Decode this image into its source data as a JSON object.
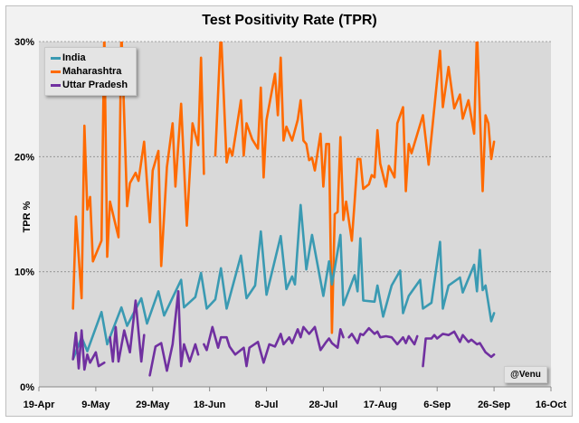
{
  "chart_data": {
    "type": "line",
    "title": "Test Positivity Rate (TPR)",
    "xlabel": "",
    "ylabel": "TPR %",
    "xlim": [
      "19-Apr",
      "16-Oct"
    ],
    "ylim": [
      0,
      30
    ],
    "x_ticks": [
      "19-Apr",
      "9-May",
      "29-May",
      "18-Jun",
      "8-Jul",
      "28-Jul",
      "17-Aug",
      "6-Sep",
      "26-Sep",
      "16-Oct"
    ],
    "y_ticks": [
      "0%",
      "10%",
      "20%",
      "30%"
    ],
    "y_tick_values": [
      0,
      10,
      20,
      30
    ],
    "grid": "horizontal dotted",
    "legend_position": "top-left",
    "annotation": "@Venu",
    "series": [
      {
        "name": "India",
        "color": "#3a9ab2",
        "points": [
          [
            "1-May",
            2.4
          ],
          [
            "4-May",
            4.3
          ],
          [
            "6-May",
            3.1
          ],
          [
            "11-May",
            6.5
          ],
          [
            "13-May",
            3.7
          ],
          [
            "18-May",
            6.9
          ],
          [
            "20-May",
            5.3
          ],
          [
            "25-May",
            7.7
          ],
          [
            "27-May",
            5.5
          ],
          [
            "31-May",
            8.3
          ],
          [
            "2-Jun",
            6.2
          ],
          [
            "8-Jun",
            9.3
          ],
          [
            "9-Jun",
            6.9
          ],
          [
            "13-Jun",
            7.8
          ],
          [
            "15-Jun",
            9.9
          ],
          [
            "17-Jun",
            6.8
          ],
          [
            "20-Jun",
            7.6
          ],
          [
            "22-Jun",
            10.3
          ],
          [
            "24-Jun",
            6.8
          ],
          [
            "29-Jun",
            11.4
          ],
          [
            "1-Jul",
            7.7
          ],
          [
            "4-Jul",
            8.8
          ],
          [
            "6-Jul",
            13.5
          ],
          [
            "8-Jul",
            8.0
          ],
          [
            "13-Jul",
            13.1
          ],
          [
            "15-Jul",
            8.5
          ],
          [
            "17-Jul",
            9.6
          ],
          [
            "18-Jul",
            8.9
          ],
          [
            "20-Jul",
            15.8
          ],
          [
            "22-Jul",
            10.2
          ],
          [
            "24-Jul",
            13.2
          ],
          [
            "28-Jul",
            7.9
          ],
          [
            "30-Jul",
            10.9
          ],
          [
            "31-Jul",
            8.9
          ],
          [
            "3-Aug",
            13.2
          ],
          [
            "4-Aug",
            7.1
          ],
          [
            "8-Aug",
            9.7
          ],
          [
            "9-Aug",
            8.3
          ],
          [
            "10-Aug",
            12.9
          ],
          [
            "11-Aug",
            7.5
          ],
          [
            "15-Aug",
            7.4
          ],
          [
            "16-Aug",
            8.8
          ],
          [
            "18-Aug",
            6.1
          ],
          [
            "21-Aug",
            8.8
          ],
          [
            "24-Aug",
            10.1
          ],
          [
            "25-Aug",
            6.4
          ],
          [
            "27-Aug",
            7.9
          ],
          [
            "31-Aug",
            9.3
          ],
          [
            "1-Sep",
            6.8
          ],
          [
            "4-Sep",
            7.3
          ],
          [
            "7-Sep",
            12.6
          ],
          [
            "8-Sep",
            6.8
          ],
          [
            "10-Sep",
            8.8
          ],
          [
            "14-Sep",
            9.5
          ],
          [
            "15-Sep",
            8.2
          ],
          [
            "19-Sep",
            10.6
          ],
          [
            "20-Sep",
            8.3
          ],
          [
            "21-Sep",
            11.9
          ],
          [
            "22-Sep",
            8.4
          ],
          [
            "23-Sep",
            8.8
          ],
          [
            "25-Sep",
            5.7
          ],
          [
            "26-Sep",
            6.4
          ]
        ]
      },
      {
        "name": "Maharashtra",
        "color": "#ff6a00",
        "points": [
          [
            "1-May",
            6.8
          ],
          [
            "2-May",
            14.8
          ],
          [
            "4-May",
            7.7
          ],
          [
            "5-May",
            22.7
          ],
          [
            "6-May",
            15.4
          ],
          [
            "7-May",
            16.5
          ],
          [
            "8-May",
            10.9
          ],
          [
            "11-May",
            12.7
          ],
          [
            "12-May",
            31
          ],
          [
            "13-May",
            11.3
          ],
          [
            "14-May",
            16.1
          ],
          [
            "17-May",
            13.0
          ],
          [
            "18-May",
            31
          ],
          [
            "20-May",
            15.7
          ],
          [
            "21-May",
            17.7
          ],
          [
            "23-May",
            18.6
          ],
          [
            "24-May",
            17.9
          ],
          [
            "26-May",
            21.3
          ],
          [
            "28-May",
            14.3
          ],
          [
            "29-May",
            18.8
          ],
          [
            "31-May",
            20.5
          ],
          [
            "1-Jun",
            10.5
          ],
          [
            "3-Jun",
            19.1
          ],
          [
            "5-Jun",
            22.9
          ],
          [
            "6-Jun",
            17.4
          ],
          [
            "8-Jun",
            24.6
          ],
          [
            "10-Jun",
            14.0
          ],
          [
            "12-Jun",
            22.9
          ],
          [
            "14-Jun",
            21.0
          ],
          [
            "15-Jun",
            28.6
          ],
          [
            "16-Jun",
            18.5
          ],
          null,
          [
            "20-Jun",
            20.1
          ],
          [
            "22-Jun",
            31
          ],
          [
            "24-Jun",
            19.5
          ],
          [
            "25-Jun",
            20.7
          ],
          [
            "26-Jun",
            20.1
          ],
          [
            "29-Jun",
            24.9
          ],
          [
            "30-Jun",
            20.1
          ],
          [
            "1-Jul",
            22.9
          ],
          [
            "3-Jul",
            21.5
          ],
          [
            "5-Jul",
            20.7
          ],
          [
            "6-Jul",
            26.0
          ],
          [
            "7-Jul",
            18.2
          ],
          [
            "8-Jul",
            23.2
          ],
          [
            "11-Jul",
            27.2
          ],
          [
            "12-Jul",
            23.6
          ],
          [
            "13-Jul",
            28.6
          ],
          [
            "14-Jul",
            21.4
          ],
          [
            "15-Jul",
            22.6
          ],
          [
            "17-Jul",
            21.4
          ],
          [
            "19-Jul",
            23.2
          ],
          [
            "20-Jul",
            24.9
          ],
          [
            "21-Jul",
            21.4
          ],
          [
            "22-Jul",
            21.1
          ],
          [
            "23-Jul",
            19.7
          ],
          [
            "24-Jul",
            19.9
          ],
          [
            "25-Jul",
            18.8
          ],
          [
            "27-Jul",
            22.0
          ],
          [
            "28-Jul",
            17.4
          ],
          [
            "29-Jul",
            21.1
          ],
          [
            "30-Jul",
            21.1
          ],
          [
            "31-Jul",
            4.7
          ],
          [
            "1-Aug",
            15.0
          ],
          [
            "2-Aug",
            15.2
          ],
          [
            "3-Aug",
            21.7
          ],
          [
            "4-Aug",
            14.5
          ],
          [
            "5-Aug",
            16.1
          ],
          [
            "7-Aug",
            12.7
          ],
          [
            "8-Aug",
            16.1
          ],
          [
            "9-Aug",
            19.8
          ],
          [
            "10-Aug",
            19.8
          ],
          [
            "11-Aug",
            17.2
          ],
          [
            "13-Aug",
            17.6
          ],
          [
            "14-Aug",
            18.4
          ],
          [
            "15-Aug",
            18.2
          ],
          [
            "16-Aug",
            22.3
          ],
          [
            "17-Aug",
            19.4
          ],
          [
            "19-Aug",
            17.4
          ],
          [
            "20-Aug",
            19.2
          ],
          [
            "22-Aug",
            18.2
          ],
          [
            "23-Aug",
            22.9
          ],
          [
            "25-Aug",
            24.3
          ],
          [
            "26-Aug",
            17.0
          ],
          [
            "27-Aug",
            21.1
          ],
          [
            "28-Aug",
            20.3
          ],
          [
            "1-Sep",
            23.6
          ],
          [
            "3-Sep",
            19.3
          ],
          [
            "7-Sep",
            29.2
          ],
          [
            "8-Sep",
            24.3
          ],
          [
            "10-Sep",
            27.8
          ],
          [
            "12-Sep",
            24.2
          ],
          [
            "14-Sep",
            25.4
          ],
          [
            "15-Sep",
            23.3
          ],
          [
            "17-Sep",
            24.9
          ],
          [
            "19-Sep",
            22.0
          ],
          [
            "20-Sep",
            31
          ],
          [
            "22-Sep",
            17.0
          ],
          [
            "23-Sep",
            23.6
          ],
          [
            "24-Sep",
            22.9
          ],
          [
            "25-Sep",
            19.8
          ],
          [
            "26-Sep",
            21.3
          ]
        ]
      },
      {
        "name": "Uttar Pradesh",
        "color": "#7030a0",
        "points": [
          [
            "1-May",
            2.4
          ],
          [
            "2-May",
            4.7
          ],
          [
            "3-May",
            1.6
          ],
          [
            "4-May",
            4.9
          ],
          [
            "5-May",
            1.5
          ],
          [
            "6-May",
            2.8
          ],
          [
            "7-May",
            2.1
          ],
          [
            "9-May",
            3.0
          ],
          [
            "10-May",
            1.8
          ],
          [
            "12-May",
            2.1
          ],
          null,
          [
            "14-May",
            4.3
          ],
          [
            "15-May",
            2.2
          ],
          [
            "16-May",
            5.2
          ],
          [
            "17-May",
            2.2
          ],
          [
            "19-May",
            4.9
          ],
          [
            "21-May",
            3.0
          ],
          [
            "23-May",
            7.5
          ],
          [
            "25-May",
            2.2
          ],
          [
            "26-May",
            4.5
          ],
          null,
          [
            "28-May",
            1.0
          ],
          [
            "30-May",
            3.5
          ],
          [
            "1-Jun",
            3.8
          ],
          [
            "3-Jun",
            1.4
          ],
          [
            "5-Jun",
            3.7
          ],
          [
            "7-Jun",
            8.3
          ],
          [
            "8-Jun",
            1.8
          ],
          [
            "9-Jun",
            3.7
          ],
          [
            "11-Jun",
            2.2
          ],
          [
            "13-Jun",
            3.7
          ],
          [
            "14-Jun",
            2.8
          ],
          null,
          [
            "16-Jun",
            3.7
          ],
          [
            "17-Jun",
            3.2
          ],
          [
            "19-Jun",
            5.2
          ],
          [
            "21-Jun",
            3.4
          ],
          [
            "22-Jun",
            4.3
          ],
          [
            "24-Jun",
            4.3
          ],
          [
            "25-Jun",
            3.5
          ],
          [
            "27-Jun",
            2.8
          ],
          [
            "30-Jun",
            3.4
          ],
          [
            "1-Jul",
            1.8
          ],
          [
            "2-Jul",
            3.4
          ],
          [
            "5-Jul",
            3.9
          ],
          [
            "7-Jul",
            2.1
          ],
          [
            "9-Jul",
            3.7
          ],
          [
            "11-Jul",
            3.5
          ],
          [
            "13-Jul",
            4.6
          ],
          [
            "14-Jul",
            3.7
          ],
          [
            "16-Jul",
            4.3
          ],
          [
            "17-Jul",
            3.8
          ],
          [
            "19-Jul",
            5.0
          ],
          [
            "20-Jul",
            4.3
          ],
          [
            "21-Jul",
            5.2
          ],
          [
            "23-Jul",
            4.6
          ],
          [
            "25-Jul",
            5.2
          ],
          [
            "27-Jul",
            3.2
          ],
          [
            "29-Jul",
            3.9
          ],
          [
            "30-Jul",
            4.2
          ],
          [
            "31-Jul",
            3.8
          ],
          [
            "2-Aug",
            3.4
          ],
          [
            "3-Aug",
            5.0
          ],
          [
            "4-Aug",
            4.3
          ],
          null,
          [
            "6-Aug",
            4.3
          ],
          [
            "7-Aug",
            4.6
          ],
          [
            "9-Aug",
            3.8
          ],
          [
            "10-Aug",
            4.6
          ],
          [
            "11-Aug",
            4.5
          ],
          [
            "13-Aug",
            5.1
          ],
          [
            "15-Aug",
            4.6
          ],
          [
            "16-Aug",
            4.8
          ],
          [
            "17-Aug",
            4.3
          ],
          [
            "19-Aug",
            4.4
          ],
          [
            "21-Aug",
            4.3
          ],
          [
            "22-Aug",
            4.0
          ],
          [
            "23-Aug",
            3.7
          ],
          [
            "25-Aug",
            4.3
          ],
          [
            "26-Aug",
            3.8
          ],
          [
            "27-Aug",
            4.4
          ],
          [
            "29-Aug",
            3.7
          ],
          [
            "30-Aug",
            4.4
          ],
          null,
          [
            "1-Sep",
            1.8
          ],
          [
            "2-Sep",
            4.2
          ],
          [
            "4-Sep",
            4.2
          ],
          [
            "5-Sep",
            4.5
          ],
          [
            "6-Sep",
            4.2
          ],
          [
            "8-Sep",
            4.6
          ],
          [
            "10-Sep",
            4.5
          ],
          [
            "12-Sep",
            4.8
          ],
          [
            "14-Sep",
            3.9
          ],
          [
            "15-Sep",
            4.5
          ],
          [
            "17-Sep",
            3.9
          ],
          [
            "18-Sep",
            4.1
          ],
          [
            "20-Sep",
            3.7
          ],
          [
            "21-Sep",
            3.8
          ],
          [
            "23-Sep",
            3.0
          ],
          [
            "25-Sep",
            2.6
          ],
          [
            "26-Sep",
            2.8
          ]
        ]
      }
    ]
  }
}
